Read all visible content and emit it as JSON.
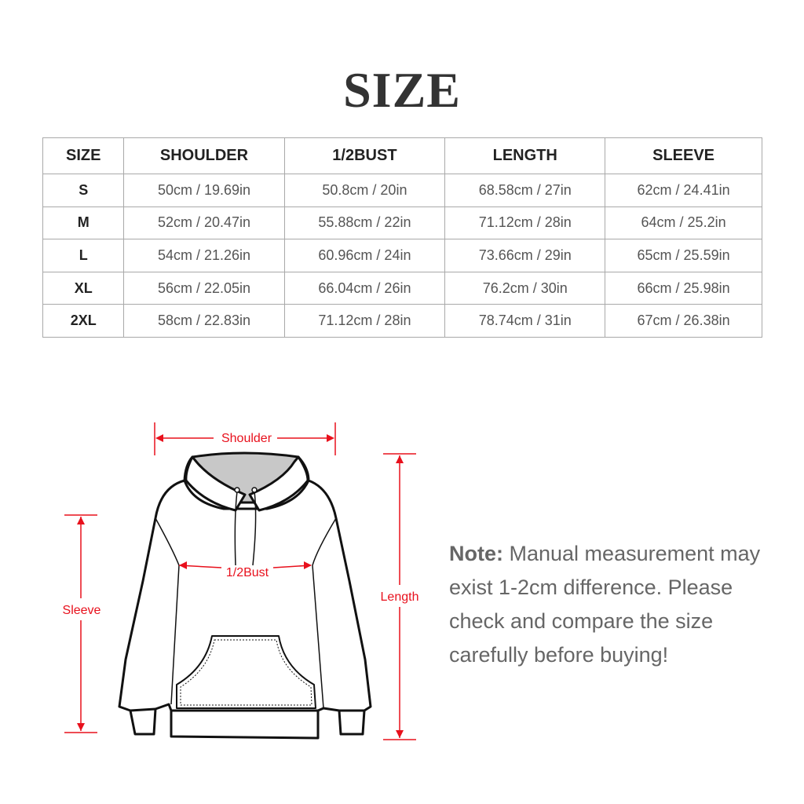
{
  "title": "SIZE",
  "table": {
    "headers": [
      "SIZE",
      "SHOULDER",
      "1/2BUST",
      "LENGTH",
      "SLEEVE"
    ],
    "rows": [
      [
        "S",
        "50cm / 19.69in",
        "50.8cm / 20in",
        "68.58cm / 27in",
        "62cm / 24.41in"
      ],
      [
        "M",
        "52cm / 20.47in",
        "55.88cm / 22in",
        "71.12cm / 28in",
        "64cm / 25.2in"
      ],
      [
        "L",
        "54cm / 21.26in",
        "60.96cm / 24in",
        "73.66cm / 29in",
        "65cm / 25.59in"
      ],
      [
        "XL",
        "56cm / 22.05in",
        "66.04cm / 26in",
        "76.2cm / 30in",
        "66cm / 25.98in"
      ],
      [
        "2XL",
        "58cm / 22.83in",
        "71.12cm / 28in",
        "78.74cm / 31in",
        "67cm / 26.38in"
      ]
    ]
  },
  "diagram": {
    "shoulder": "Shoulder",
    "bust": "1/2Bust",
    "sleeve": "Sleeve",
    "length": "Length",
    "accent_color": "#e8101c"
  },
  "note": {
    "label": "Note:",
    "text": " Manual measurement may exist 1-2cm difference. Please check and compare the size carefully before buying!"
  }
}
